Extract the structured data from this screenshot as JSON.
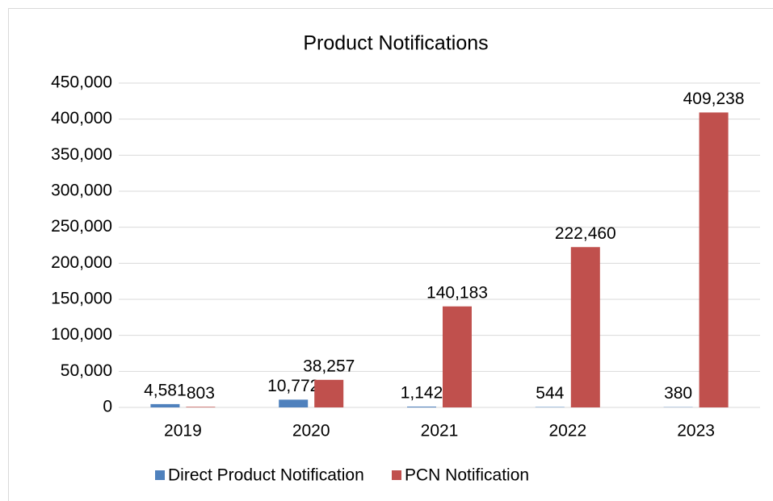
{
  "chart_data": {
    "type": "bar",
    "title": "Product Notifications",
    "categories": [
      "2019",
      "2020",
      "2021",
      "2022",
      "2023"
    ],
    "series": [
      {
        "name": "Direct Product Notification",
        "color": "#4f81bd",
        "values": [
          4581,
          10772,
          1142,
          544,
          380
        ],
        "value_labels": [
          "4,581",
          "10,772",
          "1,142",
          "544",
          "380"
        ]
      },
      {
        "name": "PCN Notification",
        "color": "#c0504d",
        "values": [
          803,
          38257,
          140183,
          222460,
          409238
        ],
        "value_labels": [
          "803",
          "38,257",
          "140,183",
          "222,460",
          "409,238"
        ]
      }
    ],
    "ylim": [
      0,
      450000
    ],
    "yticks": [
      0,
      {
        "value": 50000,
        "label": "50,000"
      },
      {
        "value": 100000,
        "label": "100,000"
      },
      {
        "value": 150000,
        "label": "150,000"
      },
      {
        "value": 200000,
        "label": "200,000"
      },
      {
        "value": 250000,
        "label": "250,000"
      },
      {
        "value": 300000,
        "label": "300,000"
      },
      {
        "value": 350000,
        "label": "350,000"
      },
      {
        "value": 400000,
        "label": "400,000"
      },
      {
        "value": 450000,
        "label": "450,000"
      }
    ],
    "grid": true,
    "legend": "bottom"
  }
}
